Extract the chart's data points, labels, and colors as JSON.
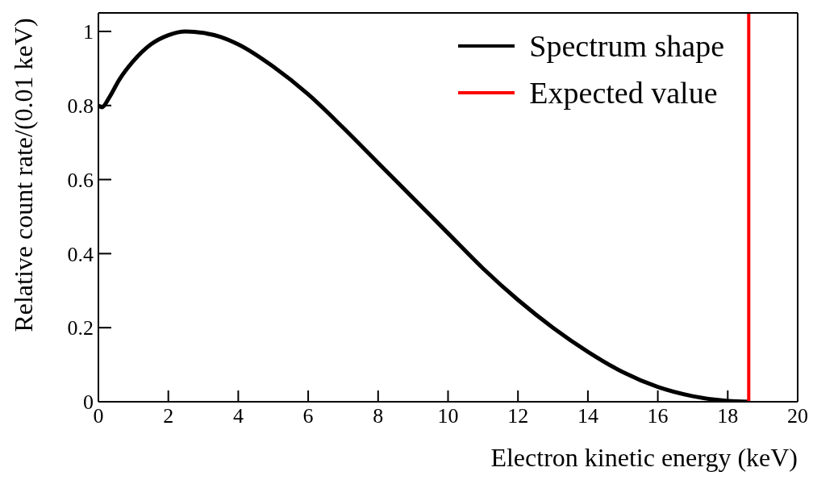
{
  "chart_data": {
    "type": "line",
    "xlabel": "Electron kinetic energy (keV)",
    "ylabel": "Relative count rate/(0.01 keV)",
    "xlim": [
      0,
      20
    ],
    "xticks": [
      0,
      2,
      4,
      6,
      8,
      10,
      12,
      14,
      16,
      18,
      20
    ],
    "ylim": [
      0,
      1.05
    ],
    "yticks": [
      0,
      0.2,
      0.4,
      0.6,
      0.8,
      1
    ],
    "legend": "top right",
    "marker": "none",
    "line_style": "solid",
    "series": [
      {
        "name": "Spectrum shape",
        "color": "#000000",
        "x": [
          0,
          0.1,
          0.3,
          0.6,
          1,
          1.5,
          2,
          2.5,
          3,
          3.5,
          4,
          5,
          6,
          7,
          8,
          9,
          10,
          11,
          12,
          13,
          14,
          15,
          16,
          17,
          18,
          18.6
        ],
        "values": [
          0.8,
          0.795,
          0.82,
          0.87,
          0.92,
          0.965,
          0.99,
          1.0,
          0.996,
          0.985,
          0.965,
          0.905,
          0.83,
          0.74,
          0.645,
          0.55,
          0.455,
          0.36,
          0.275,
          0.2,
          0.135,
          0.08,
          0.04,
          0.015,
          0.002,
          0
        ]
      },
      {
        "name": "Expected value",
        "color": "#ff0000",
        "x": [
          18.6,
          18.6
        ],
        "values": [
          0,
          1.05
        ]
      }
    ]
  }
}
